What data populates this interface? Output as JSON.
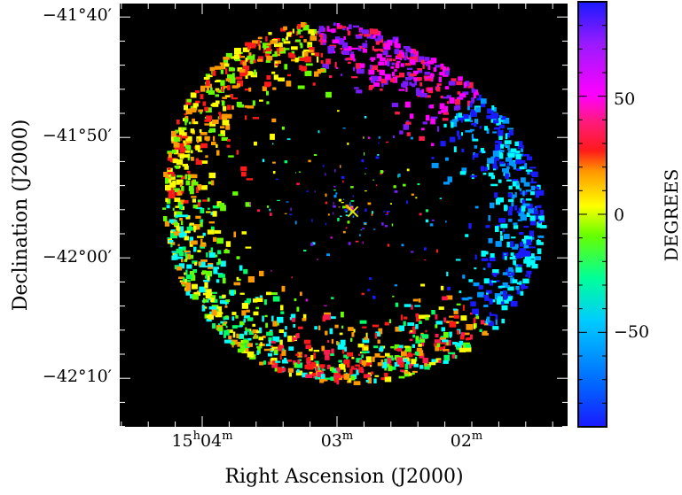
{
  "figure": {
    "xlabel": "Right Ascension (J2000)",
    "ylabel": "Declination (J2000)",
    "colorbar_label": "DEGREES",
    "dec_ticks": [
      "−41°40′",
      "−41°50′",
      "−42°00′",
      "−42°10′"
    ],
    "ra_ticks": [
      {
        "h": "15",
        "h_unit": "h",
        "m": "04",
        "m_unit": "m"
      },
      {
        "h": "",
        "h_unit": "",
        "m": "03",
        "m_unit": "m"
      },
      {
        "h": "",
        "h_unit": "",
        "m": "02",
        "m_unit": "m"
      }
    ],
    "colorbar_ticks": [
      "50",
      "0",
      "−50"
    ],
    "colorbar_range": [
      -90,
      90
    ],
    "colorbar_tick_values": [
      50,
      0,
      -50
    ],
    "marker_symbol": "×",
    "marker_color": "#e8e800",
    "background_color": "#000000",
    "colormap": [
      "#1a1aff",
      "#7a1aff",
      "#ff00ff",
      "#ff1a4d",
      "#ff1a1a",
      "#ff9900",
      "#ffff00",
      "#66ff00",
      "#00ff66",
      "#00ffff",
      "#0099ff",
      "#1a1aff"
    ]
  }
}
